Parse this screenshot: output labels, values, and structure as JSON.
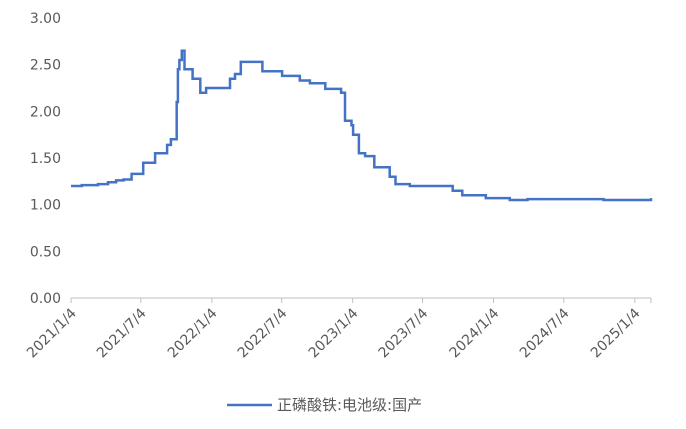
{
  "chart_data": {
    "type": "line",
    "title": "",
    "xlabel": "",
    "ylabel": "",
    "ylim": [
      0,
      3
    ],
    "y_ticks": [
      "0.00",
      "0.50",
      "1.00",
      "1.50",
      "2.00",
      "2.50",
      "3.00"
    ],
    "x_ticks": [
      "2021/1/4",
      "2021/7/4",
      "2022/1/4",
      "2022/7/4",
      "2023/1/4",
      "2023/7/4",
      "2024/1/4",
      "2024/7/4",
      "2025/1/4"
    ],
    "x_range": [
      "2021/1/4",
      "2025/2/15"
    ],
    "grid": false,
    "legend_position": "bottom",
    "color": "#4472C4",
    "series": [
      {
        "name": "正磷酸铁:电池级:国产",
        "x": [
          "2021/1/4",
          "2021/2/1",
          "2021/3/15",
          "2021/4/10",
          "2021/5/1",
          "2021/5/20",
          "2021/6/10",
          "2021/6/20",
          "2021/7/10",
          "2021/8/10",
          "2021/8/20",
          "2021/9/10",
          "2021/9/20",
          "2021/10/1",
          "2021/10/5",
          "2021/10/8",
          "2021/10/12",
          "2021/10/18",
          "2021/10/25",
          "2021/11/15",
          "2021/12/5",
          "2021/12/20",
          "2022/2/20",
          "2022/3/5",
          "2022/3/20",
          "2022/5/15",
          "2022/6/20",
          "2022/7/5",
          "2022/8/20",
          "2022/9/15",
          "2022/10/25",
          "2022/11/20",
          "2022/12/5",
          "2022/12/15",
          "2023/1/1",
          "2023/1/5",
          "2023/1/20",
          "2023/1/25",
          "2023/2/5",
          "2023/3/1",
          "2023/3/20",
          "2023/4/10",
          "2023/4/25",
          "2023/5/10",
          "2023/6/1",
          "2023/9/1",
          "2023/9/20",
          "2023/10/15",
          "2023/11/10",
          "2023/12/15",
          "2024/1/5",
          "2024/2/15",
          "2024/4/1",
          "2024/7/20",
          "2024/10/15",
          "2024/12/30",
          "2025/2/15"
        ],
        "y": [
          1.2,
          1.21,
          1.22,
          1.24,
          1.26,
          1.27,
          1.33,
          1.33,
          1.45,
          1.55,
          1.55,
          1.64,
          1.7,
          1.7,
          2.1,
          2.45,
          2.55,
          2.65,
          2.45,
          2.35,
          2.2,
          2.25,
          2.35,
          2.4,
          2.53,
          2.43,
          2.43,
          2.38,
          2.33,
          2.3,
          2.24,
          2.24,
          2.2,
          1.9,
          1.85,
          1.75,
          1.55,
          1.55,
          1.52,
          1.4,
          1.4,
          1.3,
          1.22,
          1.22,
          1.2,
          1.2,
          1.15,
          1.1,
          1.1,
          1.07,
          1.07,
          1.05,
          1.06,
          1.06,
          1.05,
          1.05,
          1.07
        ]
      }
    ]
  }
}
